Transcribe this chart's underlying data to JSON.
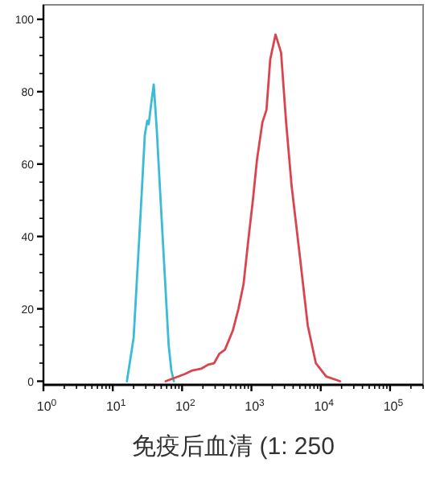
{
  "chart_data": {
    "type": "line",
    "xlabel": "免疫后血清 (1: 250",
    "log": "x",
    "xlim": [
      1,
      300000
    ],
    "ylim": [
      -1,
      104
    ],
    "xticks": [
      {
        "value": 1,
        "label": "10$^{0}$"
      },
      {
        "value": 10,
        "label": "10$^{1}$"
      },
      {
        "value": 100,
        "label": "10$^{2}$"
      },
      {
        "value": 1000,
        "label": "10$^{3}$"
      },
      {
        "value": 10000,
        "label": "10$^{4}$"
      },
      {
        "value": 100000,
        "label": "10$^{5}$"
      }
    ],
    "yticks": [
      0,
      20,
      40,
      60,
      80,
      100
    ],
    "series": [
      {
        "color": "#3bbcd6",
        "x": [
          16,
          20,
          25,
          29,
          31.5,
          33,
          36,
          39,
          43,
          49,
          56,
          64,
          70,
          76
        ],
        "values": [
          0,
          12,
          45,
          68,
          72,
          71,
          77,
          82,
          70,
          50,
          30,
          10,
          3,
          0
        ]
      },
      {
        "color": "#d9454f",
        "x": [
          58,
          80,
          110,
          141,
          190,
          240,
          290,
          345,
          415,
          540,
          650,
          770,
          915,
          1050,
          1200,
          1440,
          1650,
          1870,
          2230,
          2680,
          3170,
          3800,
          4980,
          6500,
          8500,
          12000,
          19000
        ],
        "values": [
          0,
          1,
          2,
          3,
          3.5,
          4.6,
          5,
          7.6,
          8.7,
          14,
          20,
          26.8,
          40,
          50,
          61,
          71.5,
          75,
          89,
          95.8,
          90.8,
          71.5,
          54,
          34.8,
          15.4,
          5,
          1.3,
          0
        ]
      }
    ]
  }
}
